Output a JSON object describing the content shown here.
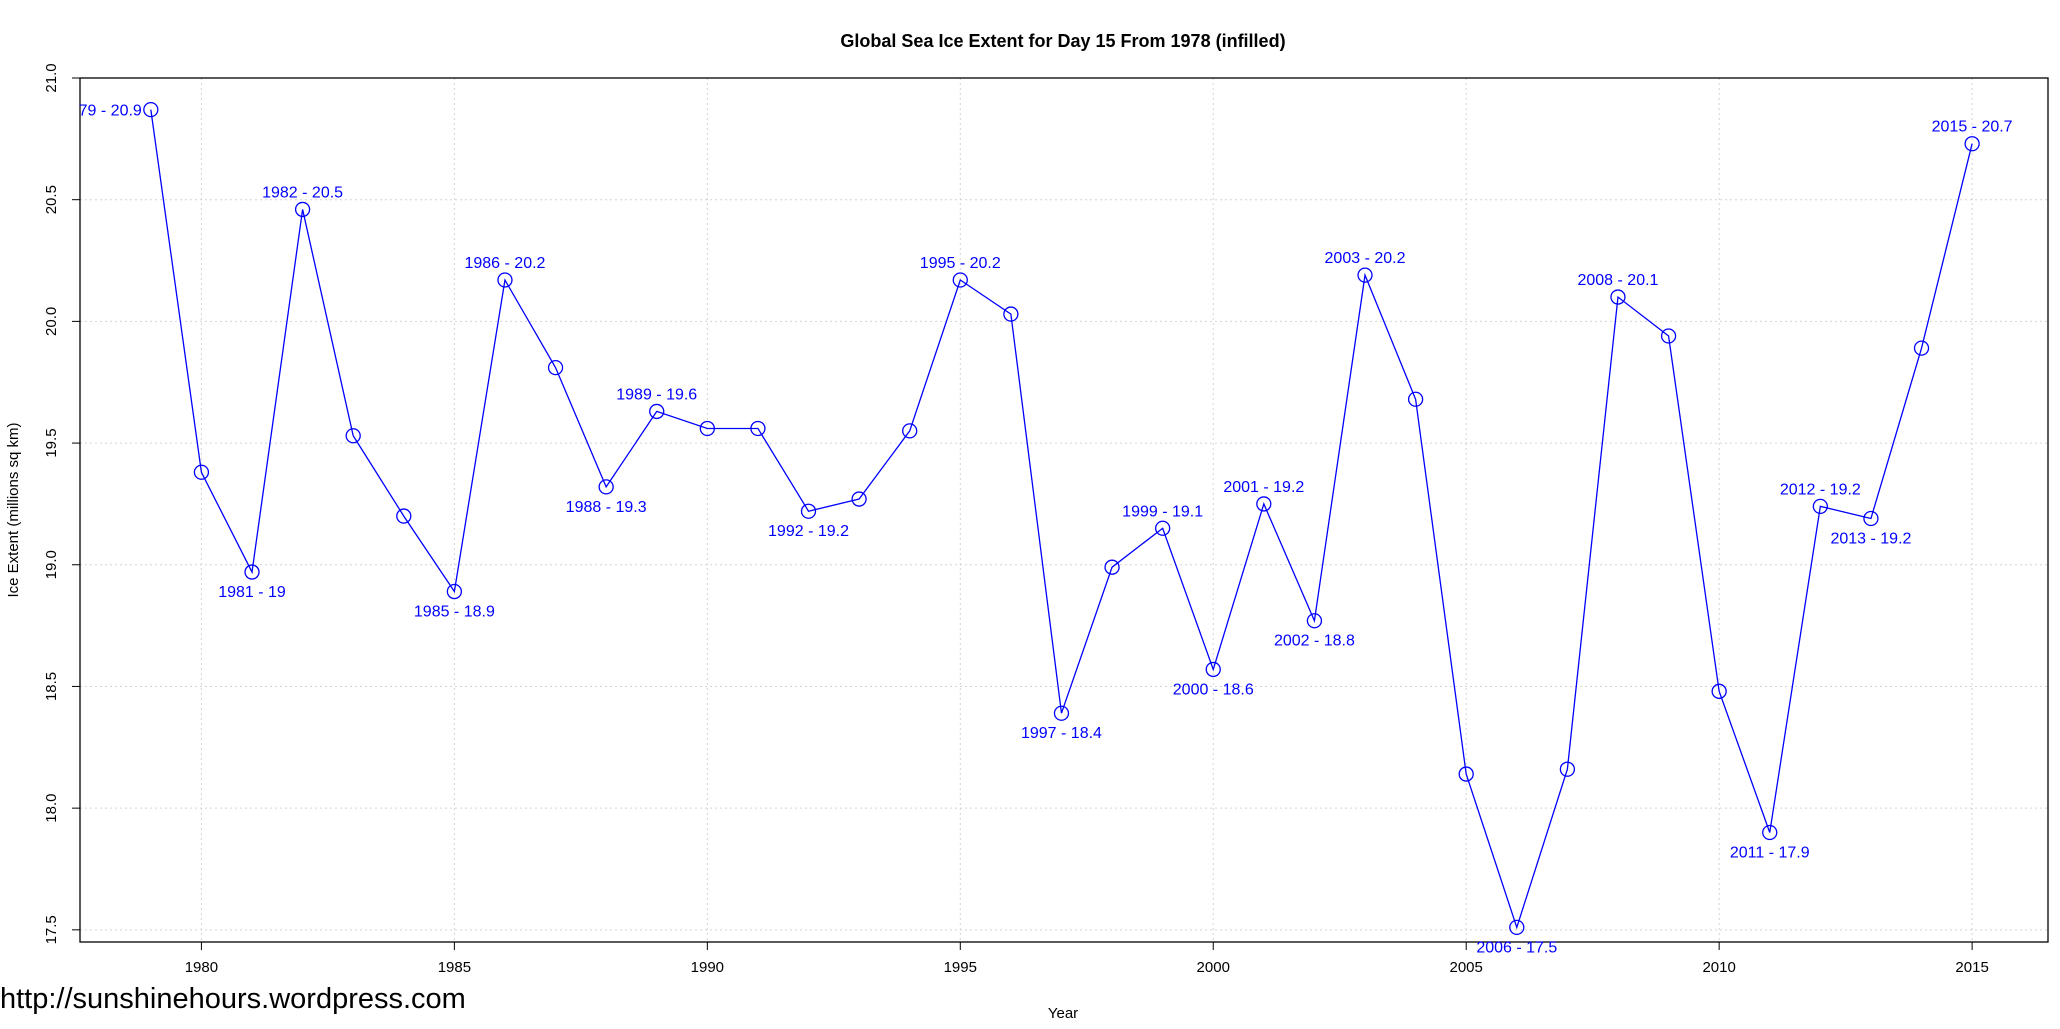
{
  "chart_data": {
    "type": "line",
    "title": "Global Sea Ice Extent for Day 15 From 1978 (infilled)",
    "xlabel": "Year",
    "ylabel": "Ice Extent (millions sq km)",
    "xlim": [
      1977.6,
      2016.5
    ],
    "ylim": [
      17.45,
      21.0
    ],
    "x_ticks": [
      1980,
      1985,
      1990,
      1995,
      2000,
      2005,
      2010,
      2015
    ],
    "y_ticks": [
      "17.5",
      "18.0",
      "18.5",
      "19.0",
      "19.5",
      "20.0",
      "20.5",
      "21.0"
    ],
    "grid": true,
    "series": [
      {
        "color": "#0000ff",
        "marker": "open-circle",
        "x": [
          1979,
          1980,
          1981,
          1982,
          1983,
          1984,
          1985,
          1986,
          1987,
          1988,
          1989,
          1990,
          1991,
          1992,
          1993,
          1994,
          1995,
          1996,
          1997,
          1998,
          1999,
          2000,
          2001,
          2002,
          2003,
          2004,
          2005,
          2006,
          2007,
          2008,
          2009,
          2010,
          2011,
          2012,
          2013,
          2014,
          2015
        ],
        "y": [
          20.87,
          19.38,
          18.97,
          20.46,
          19.53,
          19.2,
          18.89,
          20.17,
          19.81,
          19.32,
          19.63,
          19.56,
          19.56,
          19.22,
          19.27,
          19.55,
          20.17,
          20.03,
          18.39,
          18.99,
          19.15,
          18.57,
          19.25,
          18.77,
          20.19,
          19.68,
          18.14,
          17.51,
          18.16,
          20.1,
          19.94,
          18.48,
          17.9,
          19.24,
          19.19,
          19.89,
          20.73
        ]
      }
    ],
    "annotations": [
      {
        "x": 1979,
        "y": 20.87,
        "text": "79 - 20.9",
        "pos": "left"
      },
      {
        "x": 1981,
        "y": 18.97,
        "text": "1981 - 19",
        "pos": "below"
      },
      {
        "x": 1982,
        "y": 20.46,
        "text": "1982 - 20.5",
        "pos": "above"
      },
      {
        "x": 1985,
        "y": 18.89,
        "text": "1985 - 18.9",
        "pos": "below"
      },
      {
        "x": 1986,
        "y": 20.17,
        "text": "1986 - 20.2",
        "pos": "above"
      },
      {
        "x": 1988,
        "y": 19.32,
        "text": "1988 - 19.3",
        "pos": "below"
      },
      {
        "x": 1989,
        "y": 19.63,
        "text": "1989 - 19.6",
        "pos": "above"
      },
      {
        "x": 1992,
        "y": 19.22,
        "text": "1992 - 19.2",
        "pos": "below"
      },
      {
        "x": 1995,
        "y": 20.17,
        "text": "1995 - 20.2",
        "pos": "above"
      },
      {
        "x": 1997,
        "y": 18.39,
        "text": "1997 - 18.4",
        "pos": "below"
      },
      {
        "x": 1999,
        "y": 19.15,
        "text": "1999 - 19.1",
        "pos": "above"
      },
      {
        "x": 2000,
        "y": 18.57,
        "text": "2000 - 18.6",
        "pos": "below"
      },
      {
        "x": 2001,
        "y": 19.25,
        "text": "2001 - 19.2",
        "pos": "above"
      },
      {
        "x": 2002,
        "y": 18.77,
        "text": "2002 - 18.8",
        "pos": "below"
      },
      {
        "x": 2003,
        "y": 20.19,
        "text": "2003 - 20.2",
        "pos": "above"
      },
      {
        "x": 2006,
        "y": 17.51,
        "text": "2006 - 17.5",
        "pos": "below"
      },
      {
        "x": 2008,
        "y": 20.1,
        "text": "2008 - 20.1",
        "pos": "above"
      },
      {
        "x": 2011,
        "y": 17.9,
        "text": "2011 - 17.9",
        "pos": "below"
      },
      {
        "x": 2012,
        "y": 19.24,
        "text": "2012 - 19.2",
        "pos": "above"
      },
      {
        "x": 2013,
        "y": 19.19,
        "text": "2013 - 19.2",
        "pos": "below"
      },
      {
        "x": 2015,
        "y": 20.73,
        "text": "2015 - 20.7",
        "pos": "above"
      }
    ]
  },
  "watermark": "http://sunshinehours.wordpress.com"
}
